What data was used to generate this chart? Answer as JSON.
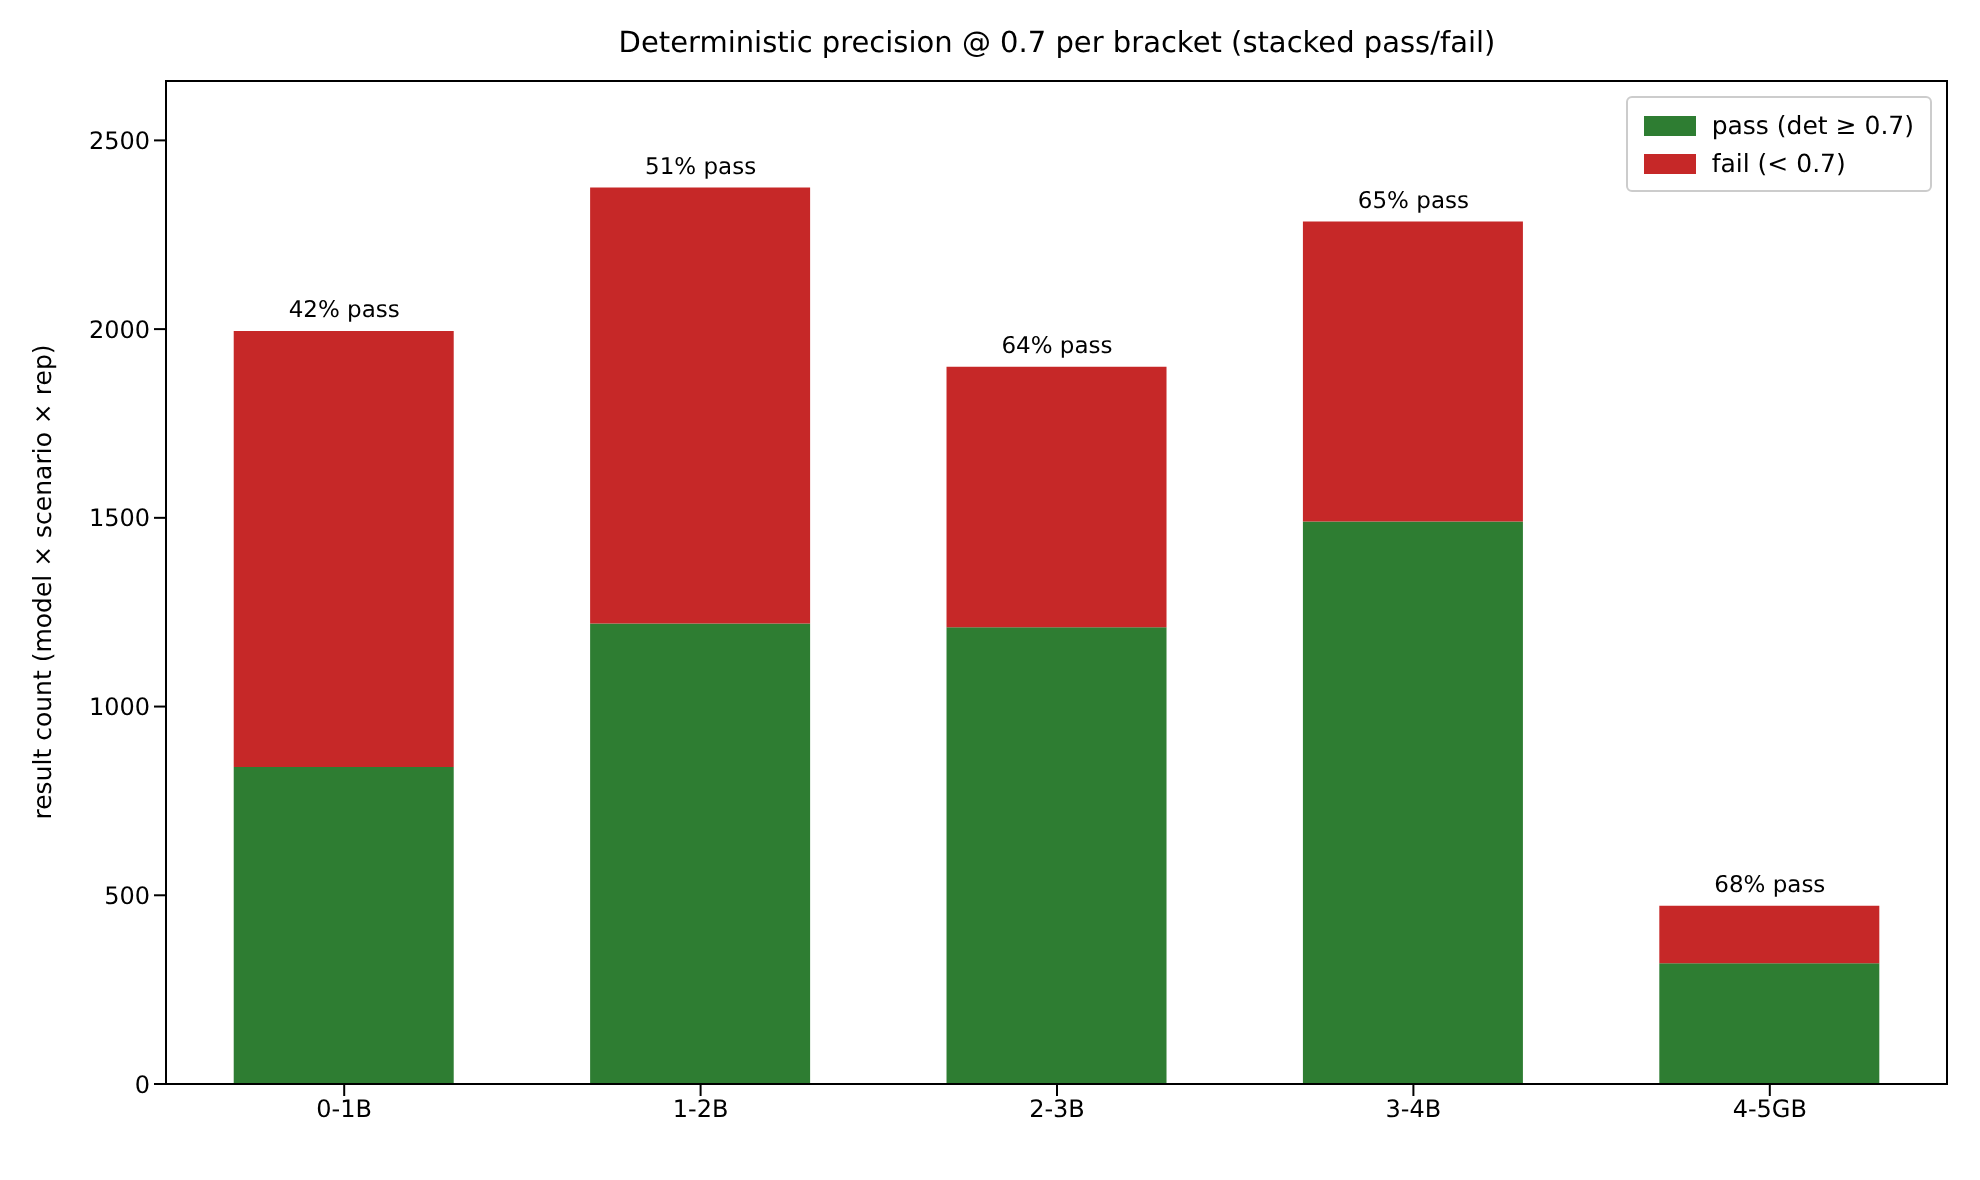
{
  "chart_data": {
    "type": "bar",
    "title": "Deterministic precision @ 0.7 per bracket (stacked pass/fail)",
    "ylabel": "result count (model × scenario × rep)",
    "categories": [
      "0-1B",
      "1-2B",
      "2-3B",
      "3-4B",
      "4-5GB"
    ],
    "stacked": true,
    "series": [
      {
        "name": "pass (det ≥ 0.7)",
        "color": "#2e7d32",
        "values": [
          840,
          1220,
          1210,
          1490,
          320
        ]
      },
      {
        "name": "fail (< 0.7)",
        "color": "#c62828",
        "values": [
          1155,
          1155,
          690,
          795,
          152
        ]
      }
    ],
    "annotations": [
      {
        "text": "42% pass",
        "x": "0-1B",
        "y": 1995
      },
      {
        "text": "51% pass",
        "x": "1-2B",
        "y": 2375
      },
      {
        "text": "64% pass",
        "x": "2-3B",
        "y": 1900
      },
      {
        "text": "65% pass",
        "x": "3-4B",
        "y": 2285
      },
      {
        "text": "68% pass",
        "x": "4-5GB",
        "y": 472
      }
    ],
    "ylim": [
      0,
      2660
    ],
    "yticks": [
      0,
      500,
      1000,
      1500,
      2000,
      2500
    ],
    "grid": false,
    "legend": "top right"
  }
}
